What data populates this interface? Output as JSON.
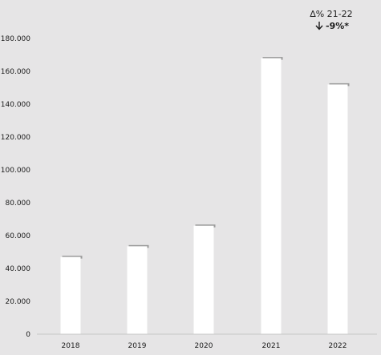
{
  "chart_data": {
    "type": "bar",
    "title": "",
    "xlabel": "",
    "ylabel": "",
    "categories": [
      "2018",
      "2019",
      "2020",
      "2021",
      "2022"
    ],
    "values": [
      47000,
      53500,
      66000,
      168000,
      152000
    ],
    "ylim": [
      0,
      180000
    ],
    "yticks": [
      0,
      20000,
      40000,
      60000,
      80000,
      100000,
      120000,
      140000,
      160000,
      180000
    ],
    "ytick_labels": [
      "0",
      "20.000",
      "40.000",
      "60.000",
      "80.000",
      "100.000",
      "120.000",
      "140.000",
      "160.000",
      "180.000"
    ],
    "grid": false,
    "legend": "none",
    "bar_color": "#ffffff",
    "shadow_color": "#9a9a9a",
    "background_color": "#e6e5e6",
    "annotation": {
      "title": "∆% 21-22",
      "arrow": "down-arrow-icon",
      "value": "-9%*"
    }
  }
}
